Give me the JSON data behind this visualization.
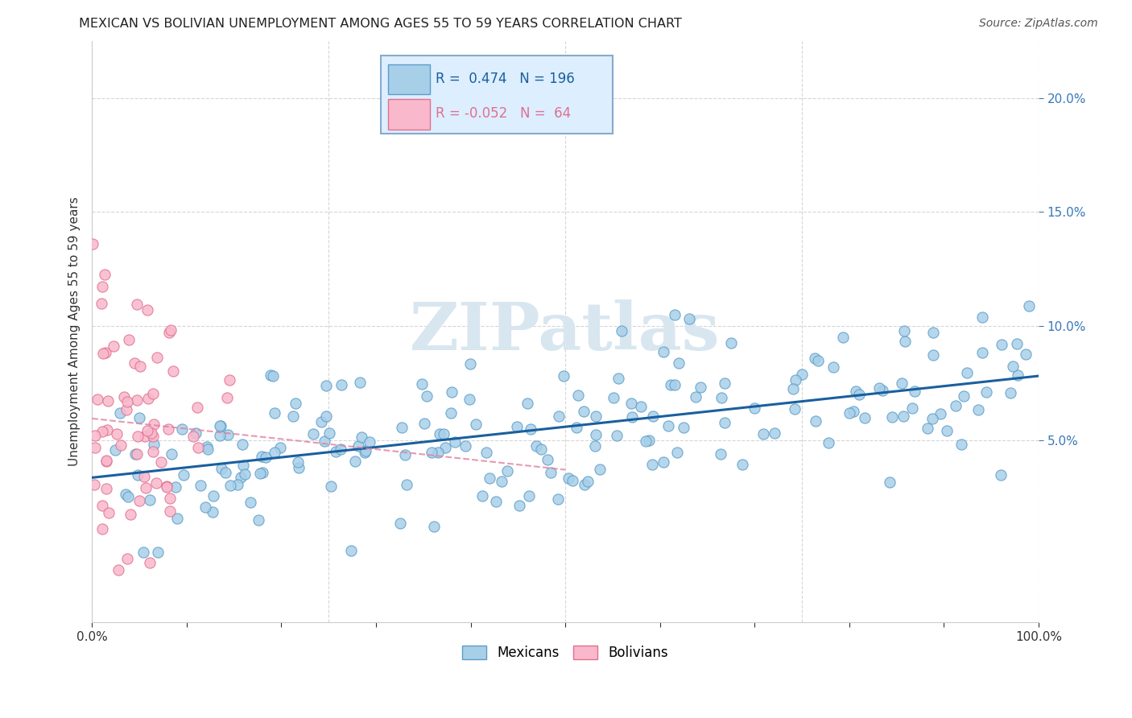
{
  "title": "MEXICAN VS BOLIVIAN UNEMPLOYMENT AMONG AGES 55 TO 59 YEARS CORRELATION CHART",
  "source": "Source: ZipAtlas.com",
  "ylabel": "Unemployment Among Ages 55 to 59 years",
  "xlim": [
    0.0,
    1.0
  ],
  "ylim": [
    -0.03,
    0.225
  ],
  "xticks": [
    0.0,
    0.1,
    0.2,
    0.3,
    0.4,
    0.5,
    0.6,
    0.7,
    0.8,
    0.9,
    1.0
  ],
  "xticklabels": [
    "0.0%",
    "",
    "",
    "",
    "",
    "",
    "",
    "",
    "",
    "",
    "100.0%"
  ],
  "yticks": [
    0.05,
    0.1,
    0.15,
    0.2
  ],
  "yticklabels": [
    "5.0%",
    "10.0%",
    "15.0%",
    "20.0%"
  ],
  "mexican_color": "#a8cfe8",
  "bolivian_color": "#f9b8cc",
  "mexican_edge_color": "#5b9dc9",
  "bolivian_edge_color": "#e07090",
  "mexican_R": 0.474,
  "mexican_N": 196,
  "bolivian_R": -0.052,
  "bolivian_N": 64,
  "trend_mexican_color": "#1a5f9e",
  "trend_bolivian_color": "#e080a0",
  "watermark_text": "ZIPatlas",
  "watermark_color": "#d8e6f0",
  "background_color": "#ffffff",
  "grid_color": "#cccccc",
  "seed": 42,
  "legend_box_color": "#ddeeff",
  "legend_border_color": "#88aacc",
  "mexican_legend_box": "#a8cfe8",
  "bolivian_legend_box": "#f9b8cc",
  "yaxis_label_color": "#3878b8",
  "tick_label_color": "#3878b8"
}
